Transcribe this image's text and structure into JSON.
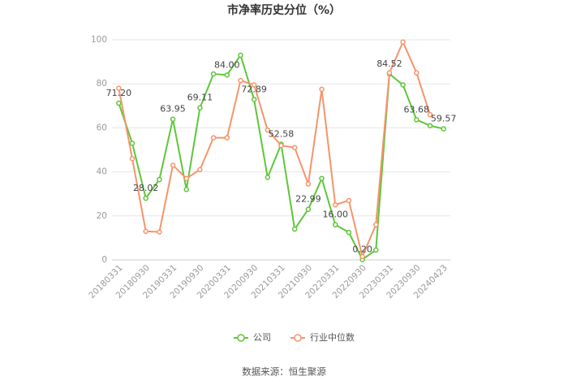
{
  "chart_data": {
    "type": "line",
    "title": "市净率历史分位（%）",
    "source": "数据来源：恒生聚源",
    "categories": [
      "20180331",
      null,
      "20180930",
      null,
      "20190331",
      null,
      "20190930",
      null,
      "20200331",
      null,
      "20200930",
      null,
      "20210331",
      null,
      "20210930",
      null,
      "20220331",
      null,
      "20220930",
      null,
      "20230331",
      null,
      "20230930",
      null,
      "20240423"
    ],
    "series": [
      {
        "name": "公司",
        "color": "#5ec639",
        "values": [
          71.2,
          53,
          28.02,
          36.5,
          63.95,
          32,
          69.11,
          84.5,
          84,
          93,
          72.89,
          37.5,
          52.58,
          14,
          22.99,
          37,
          16,
          12.5,
          0.2,
          4.5,
          84.52,
          79.5,
          63.68,
          61,
          59.57
        ],
        "value_labels": [
          "71.20",
          null,
          "28.02",
          null,
          "63.95",
          null,
          "69.11",
          null,
          "84.00",
          null,
          "72.89",
          null,
          "52.58",
          null,
          "22.99",
          null,
          "16.00",
          null,
          "0.20",
          null,
          "84.52",
          null,
          "63.68",
          null,
          "59.57"
        ]
      },
      {
        "name": "行业中位数",
        "color": "#f5946b",
        "values": [
          78,
          46,
          13,
          12.7,
          43,
          37,
          41,
          55.5,
          55.5,
          81.5,
          79.5,
          59,
          52,
          51,
          34.5,
          77.5,
          25,
          27,
          1.5,
          16,
          85,
          99,
          85,
          66,
          null
        ]
      }
    ],
    "ylim": [
      0,
      100
    ],
    "yticks": [
      0,
      20,
      40,
      60,
      80,
      100
    ],
    "grid": true
  }
}
